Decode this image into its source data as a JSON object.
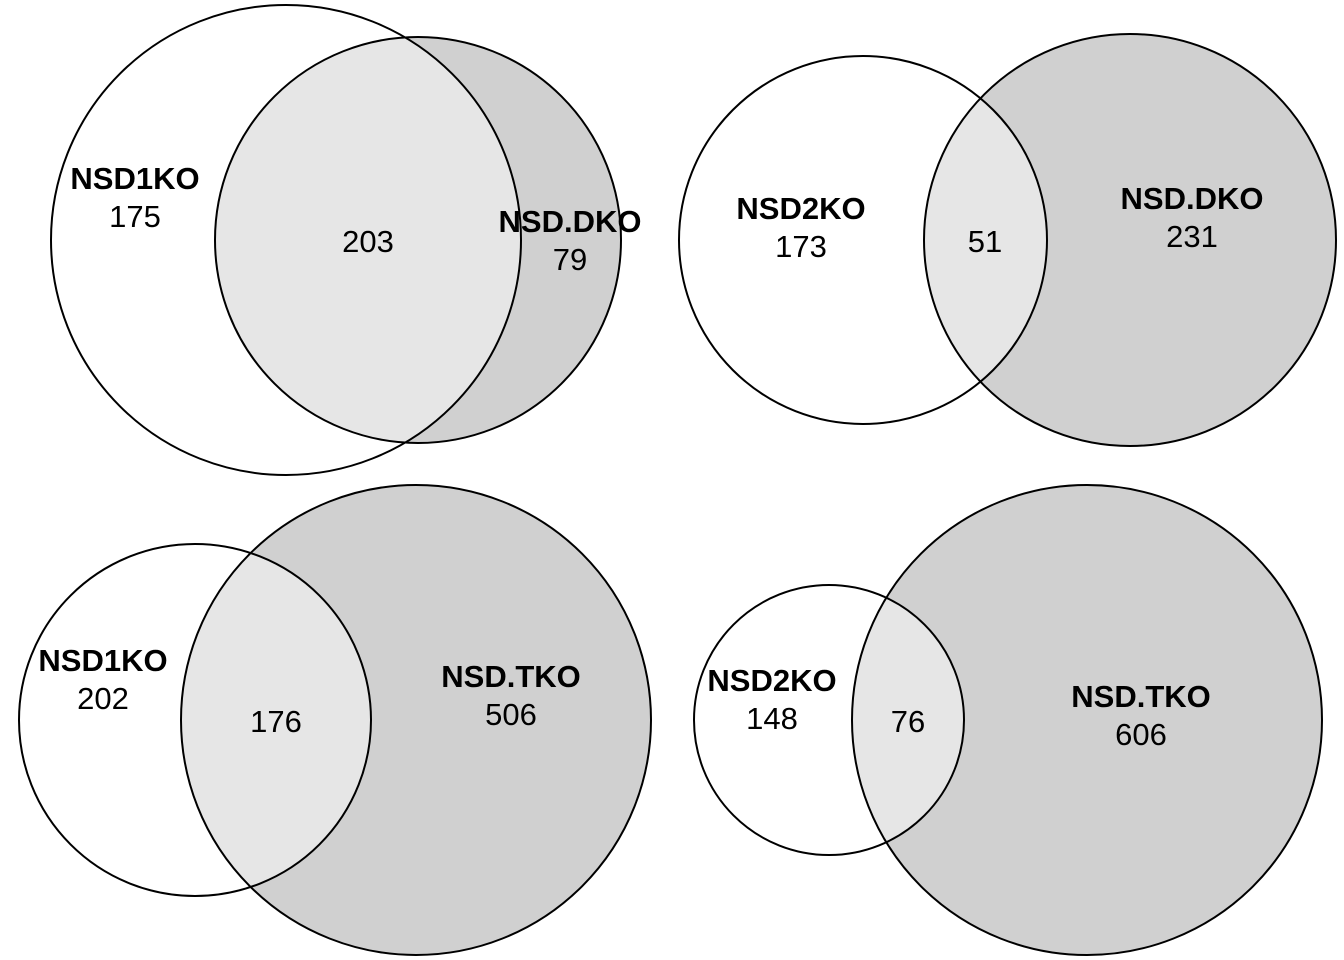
{
  "colors": {
    "only_a": "#ffffff",
    "only_b": "#d0d0d0",
    "overlap": "#e6e6e6",
    "outline": "#000000"
  },
  "diagrams": [
    {
      "set_a": {
        "name": "NSD1KO",
        "only": "175"
      },
      "set_b": {
        "name": "NSD.DKO",
        "only": "79"
      },
      "overlap": "203"
    },
    {
      "set_a": {
        "name": "NSD2KO",
        "only": "173"
      },
      "set_b": {
        "name": "NSD.DKO",
        "only": "231"
      },
      "overlap": "51"
    },
    {
      "set_a": {
        "name": "NSD1KO",
        "only": "202"
      },
      "set_b": {
        "name": "NSD.TKO",
        "only": "506"
      },
      "overlap": "176"
    },
    {
      "set_a": {
        "name": "NSD2KO",
        "only": "148"
      },
      "set_b": {
        "name": "NSD.TKO",
        "only": "606"
      },
      "overlap": "76"
    }
  ]
}
